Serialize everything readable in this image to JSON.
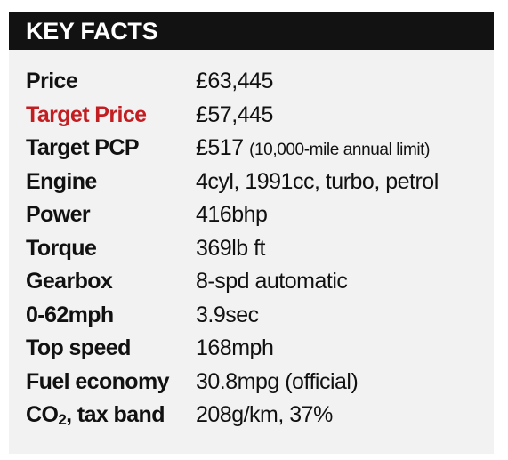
{
  "header": {
    "title": "KEY FACTS"
  },
  "colors": {
    "header_bg": "#121212",
    "panel_bg": "#f2f2f2",
    "accent": "#c21e22",
    "text": "#111111"
  },
  "facts": [
    {
      "label": "Price",
      "value": "£63,445"
    },
    {
      "label": "Target Price",
      "value": "£57,445"
    },
    {
      "label": "Target PCP",
      "value": "£517",
      "note": "(10,000-mile annual limit)"
    },
    {
      "label": "Engine",
      "value": "4cyl, 1991cc, turbo, petrol"
    },
    {
      "label": "Power",
      "value": "416bhp"
    },
    {
      "label": "Torque",
      "value": "369lb ft"
    },
    {
      "label": "Gearbox",
      "value": "8-spd automatic"
    },
    {
      "label": "0-62mph",
      "value": "3.9sec"
    },
    {
      "label": "Top speed",
      "value": "168mph"
    },
    {
      "label": "Fuel economy",
      "value": "30.8mpg (official)"
    },
    {
      "label_main": "CO",
      "label_sub": "2",
      "label_rest": ", tax band",
      "value": "208g/km, 37%"
    }
  ]
}
